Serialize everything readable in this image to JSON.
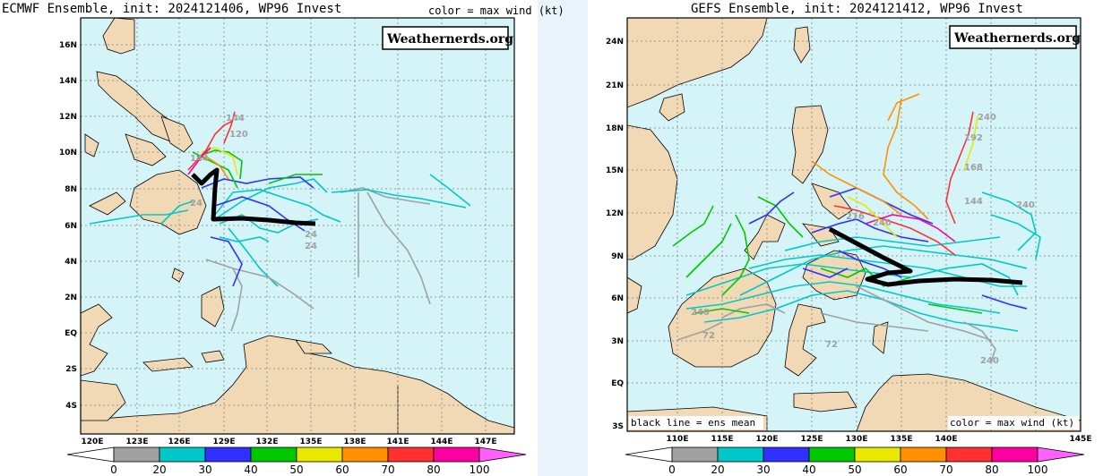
{
  "colors": {
    "ocean": "#d4f4f8",
    "land": "#f2d9b6",
    "grid": "#7f7f7f",
    "mean_track": "#000000",
    "page_bg": "#e8f4fa"
  },
  "left": {
    "title": "ECMWF Ensemble, init: 2024121406, WP96 Invest",
    "legend_note": "color = max wind (kt)",
    "badge": "Weathernerds.org",
    "lat_labels": [
      "16N",
      "14N",
      "12N",
      "10N",
      "8N",
      "6N",
      "4N",
      "2N",
      "EQ",
      "2S",
      "4S"
    ],
    "lon_labels": [
      "120E",
      "123E",
      "126E",
      "129E",
      "132E",
      "135E",
      "138E",
      "141E",
      "144E",
      "147E"
    ],
    "hour_labels": [
      "144",
      "120",
      "144",
      "24",
      "24",
      "24"
    ]
  },
  "right": {
    "title": "GEFS Ensemble, init: 2024121412, WP96 Invest",
    "badge": "Weathernerds.org",
    "lat_labels": [
      "24N",
      "21N",
      "18N",
      "15N",
      "12N",
      "9N",
      "6N",
      "3N",
      "EQ",
      "3S"
    ],
    "lon_labels": [
      "110E",
      "115E",
      "120E",
      "125E",
      "130E",
      "135E",
      "140E",
      "145E"
    ],
    "hour_labels": [
      "240",
      "192",
      "168",
      "144",
      "240",
      "216",
      "240",
      "72",
      "240",
      "72",
      "240"
    ],
    "note_left": "black line = ens mean",
    "note_right": "color = max wind (kt)"
  },
  "colorbar": {
    "labels": [
      "0",
      "20",
      "30",
      "40",
      "50",
      "60",
      "70",
      "80",
      "100"
    ],
    "colors": [
      "#a0a0a0",
      "#00c8c8",
      "#3030ff",
      "#00c800",
      "#e8e800",
      "#ff9000",
      "#ff3030",
      "#ff00a0"
    ],
    "left_end": "#ffffff",
    "right_end": "#ff60ff"
  }
}
